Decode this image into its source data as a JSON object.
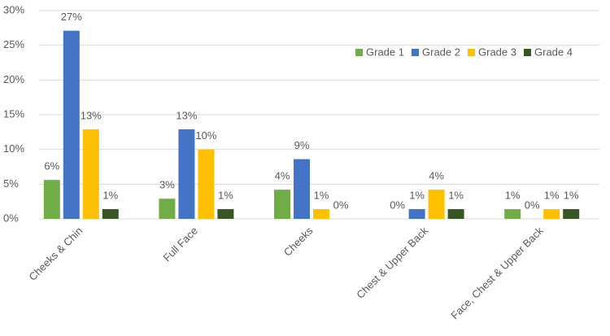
{
  "chart_data": {
    "type": "bar",
    "categories": [
      "Cheeks & Chin",
      "Full Face",
      "Cheeks",
      "Chest & Upper Back",
      "Face, Chest & Upper Back"
    ],
    "series": [
      {
        "name": "Grade 1",
        "color": "#70ad47",
        "values": [
          5.6,
          2.9,
          4.2,
          0,
          1.4
        ],
        "value_labels": [
          "6%",
          "3%",
          "4%",
          "0%",
          "1%"
        ]
      },
      {
        "name": "Grade 2",
        "color": "#4472c4",
        "values": [
          27.1,
          12.9,
          8.6,
          1.4,
          0
        ],
        "value_labels": [
          "27%",
          "13%",
          "9%",
          "1%",
          "0%"
        ]
      },
      {
        "name": "Grade 3",
        "color": "#ffc000",
        "values": [
          12.9,
          10.0,
          1.4,
          4.2,
          1.4
        ],
        "value_labels": [
          "13%",
          "10%",
          "1%",
          "4%",
          "1%"
        ]
      },
      {
        "name": "Grade 4",
        "color": "#375623",
        "values": [
          1.4,
          1.4,
          0,
          1.4,
          1.4
        ],
        "value_labels": [
          "1%",
          "1%",
          "0%",
          "1%",
          "1%"
        ]
      }
    ],
    "ylim": [
      0,
      30
    ],
    "yticks": [
      {
        "value": 0,
        "label": "0%"
      },
      {
        "value": 5,
        "label": "5%"
      },
      {
        "value": 10,
        "label": "10%"
      },
      {
        "value": 15,
        "label": "15%"
      },
      {
        "value": 20,
        "label": "20%"
      },
      {
        "value": 25,
        "label": "25%"
      },
      {
        "value": 30,
        "label": "30%"
      }
    ],
    "grid": true,
    "legend": "top-right"
  }
}
